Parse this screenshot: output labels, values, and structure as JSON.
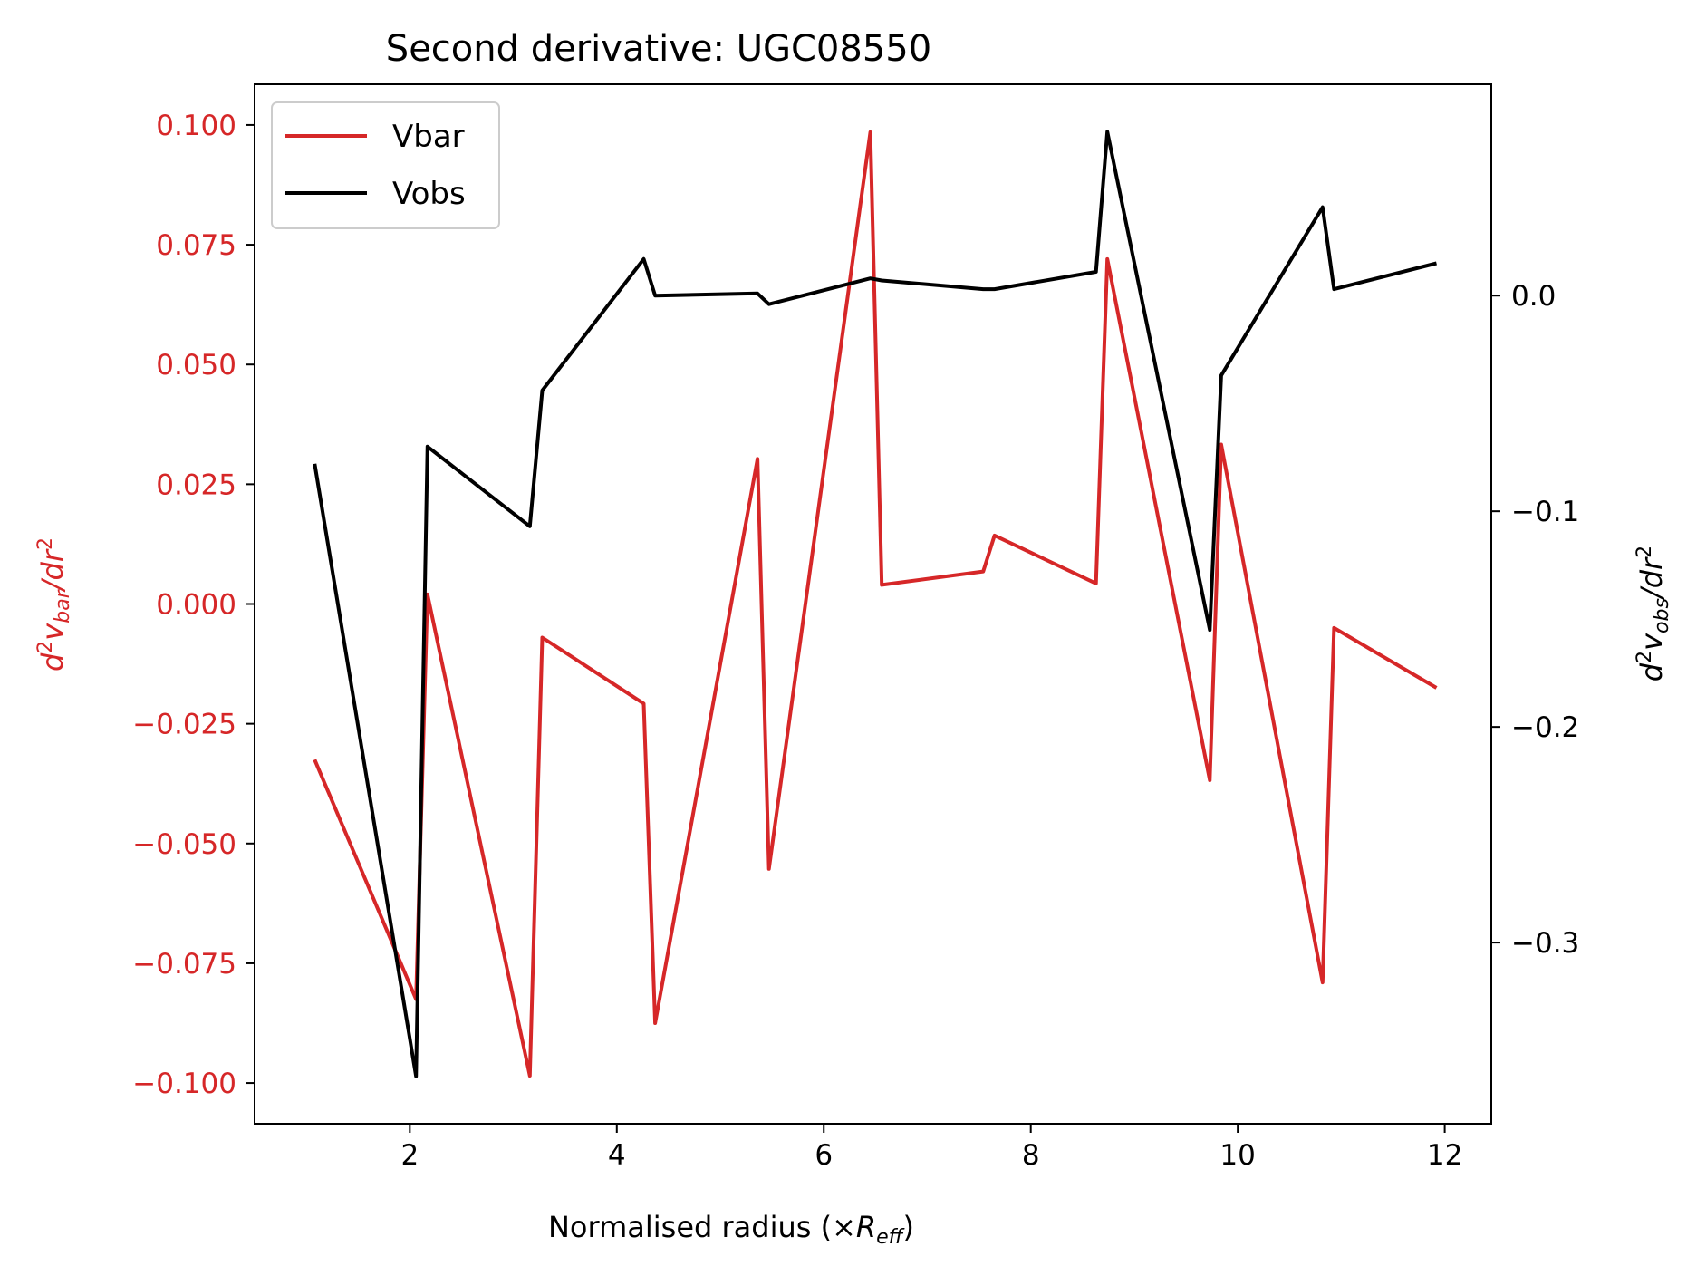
{
  "chart_data": {
    "type": "line",
    "title": "Second derivative: UGC08550",
    "xlabel": {
      "main": "Normalised radius (×",
      "symbol": "R",
      "sub": "eff",
      "close": ")"
    },
    "ylabel_left": {
      "pre": "d",
      "sup": "2",
      "v": "v",
      "sub": "bar",
      "post": "/dr",
      "sup2": "2"
    },
    "ylabel_right": {
      "pre": "d",
      "sup": "2",
      "v": "v",
      "sub": "obs",
      "post": "/dr",
      "sup2": "2"
    },
    "xlim": [
      0.5,
      12.45
    ],
    "ylim_left": [
      -0.1085,
      0.1085
    ],
    "ylim_right": [
      -0.384,
      0.098
    ],
    "x_ticks": [
      2,
      4,
      6,
      8,
      10,
      12
    ],
    "x_tick_labels": [
      "2",
      "4",
      "6",
      "8",
      "10",
      "12"
    ],
    "y_left_ticks": [
      0.1,
      0.075,
      0.05,
      0.025,
      0.0,
      -0.025,
      -0.05,
      -0.075,
      -0.1
    ],
    "y_left_tick_labels": [
      "0.100",
      "0.075",
      "0.050",
      "0.025",
      "0.000",
      "−0.025",
      "−0.050",
      "−0.075",
      "−0.100"
    ],
    "y_right_ticks": [
      0.0,
      -0.1,
      -0.2,
      -0.3
    ],
    "y_right_tick_labels": [
      "0.0",
      "−0.1",
      "−0.2",
      "−0.3"
    ],
    "legend_position": "top-left",
    "grid": false,
    "series": [
      {
        "name": "Vbar",
        "axis": "left",
        "color": "#d62728",
        "x": [
          1.08,
          2.06,
          2.17,
          3.16,
          3.28,
          4.26,
          4.37,
          5.36,
          5.47,
          6.45,
          6.56,
          7.54,
          7.65,
          8.63,
          8.74,
          9.73,
          9.84,
          10.82,
          10.93,
          11.92
        ],
        "y": [
          -0.0325,
          -0.0825,
          0.002,
          -0.0985,
          -0.007,
          -0.0208,
          -0.0875,
          0.0303,
          -0.0553,
          0.0985,
          0.004,
          0.0068,
          0.0143,
          0.0043,
          0.072,
          -0.0368,
          0.0333,
          -0.079,
          -0.005,
          -0.0175
        ]
      },
      {
        "name": "Vobs",
        "axis": "right",
        "color": "#000000",
        "x": [
          1.08,
          2.06,
          2.17,
          3.16,
          3.28,
          4.26,
          4.37,
          5.36,
          5.47,
          6.45,
          6.56,
          7.54,
          7.65,
          8.63,
          8.74,
          9.73,
          9.84,
          10.82,
          10.93,
          11.92
        ],
        "y": [
          -0.078,
          -0.362,
          -0.07,
          -0.107,
          -0.044,
          0.017,
          0.0,
          0.001,
          -0.004,
          0.008,
          0.007,
          0.003,
          0.003,
          0.011,
          0.076,
          -0.155,
          -0.037,
          0.041,
          0.003,
          0.015
        ]
      }
    ]
  }
}
